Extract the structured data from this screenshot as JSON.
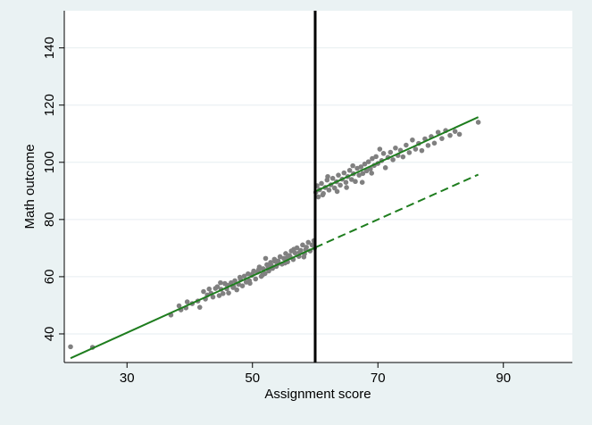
{
  "chart_data": {
    "type": "scatter",
    "title": "",
    "xlabel": "Assignment score",
    "ylabel": "Math outcome",
    "xlim": [
      20,
      101
    ],
    "ylim": [
      30,
      153
    ],
    "xticks": [
      30,
      50,
      70,
      90
    ],
    "yticks": [
      40,
      60,
      80,
      100,
      120,
      140
    ],
    "grid": true,
    "legend": "none",
    "cutoff": 60,
    "colors": {
      "points": "#808080",
      "fit_line": "#1e7d1e",
      "cutoff_line": "#000000",
      "plot_background": "#ffffff",
      "outer_background": "#eaf2f3",
      "grid": "#e6eef0"
    },
    "fit_lines": [
      {
        "x": [
          21,
          60
        ],
        "y": [
          31.5,
          70.2
        ],
        "style": "solid"
      },
      {
        "x": [
          60,
          86
        ],
        "y": [
          70.2,
          95.7
        ],
        "style": "dashed"
      },
      {
        "x": [
          60,
          86
        ],
        "y": [
          89.8,
          115.8
        ],
        "style": "solid"
      }
    ],
    "points": [
      [
        21,
        35.5
      ],
      [
        24.5,
        35.3
      ],
      [
        37,
        46.6
      ],
      [
        38.3,
        49.8
      ],
      [
        38.6,
        48.4
      ],
      [
        39.4,
        49.1
      ],
      [
        39.6,
        51.2
      ],
      [
        40.4,
        50.6
      ],
      [
        41.3,
        51.5
      ],
      [
        41.6,
        49.3
      ],
      [
        42.2,
        54.8
      ],
      [
        42.5,
        52.2
      ],
      [
        42.8,
        53.6
      ],
      [
        43.1,
        55.7
      ],
      [
        43.4,
        54.2
      ],
      [
        43.7,
        52.9
      ],
      [
        44.1,
        55.9
      ],
      [
        44.4,
        56.5
      ],
      [
        44.7,
        53.4
      ],
      [
        45.0,
        55.6
      ],
      [
        45.3,
        54.1
      ],
      [
        45.6,
        57.6
      ],
      [
        45.9,
        55.8
      ],
      [
        46.2,
        54.3
      ],
      [
        46.6,
        57.9
      ],
      [
        46.9,
        56.2
      ],
      [
        47.2,
        58.6
      ],
      [
        47.5,
        55.4
      ],
      [
        47.8,
        57.3
      ],
      [
        48.1,
        59.0
      ],
      [
        48.4,
        56.8
      ],
      [
        48.7,
        60.2
      ],
      [
        49.0,
        58.1
      ],
      [
        49.3,
        61.0
      ],
      [
        49.6,
        57.7
      ],
      [
        49.9,
        60.5
      ],
      [
        50.2,
        62.0
      ],
      [
        50.5,
        59.2
      ],
      [
        50.8,
        61.6
      ],
      [
        51.1,
        63.4
      ],
      [
        51.4,
        60.1
      ],
      [
        51.7,
        62.8
      ],
      [
        52.0,
        61.1
      ],
      [
        52.3,
        64.2
      ],
      [
        52.6,
        62.0
      ],
      [
        52.9,
        65.0
      ],
      [
        53.2,
        62.9
      ],
      [
        53.5,
        66.1
      ],
      [
        53.8,
        63.6
      ],
      [
        54.1,
        65.5
      ],
      [
        54.4,
        67.0
      ],
      [
        54.7,
        64.4
      ],
      [
        55.0,
        66.4
      ],
      [
        55.3,
        68.1
      ],
      [
        55.6,
        65.2
      ],
      [
        55.9,
        67.4
      ],
      [
        56.2,
        69.0
      ],
      [
        56.5,
        66.0
      ],
      [
        56.8,
        68.3
      ],
      [
        57.1,
        70.1
      ],
      [
        57.4,
        67.1
      ],
      [
        57.7,
        69.2
      ],
      [
        58.0,
        71.1
      ],
      [
        58.3,
        68.0
      ],
      [
        58.6,
        70.3
      ],
      [
        58.9,
        72.0
      ],
      [
        59.2,
        69.0
      ],
      [
        59.5,
        71.1
      ],
      [
        59.8,
        72.6
      ],
      [
        59.9,
        70.0
      ],
      [
        46.0,
        57.0
      ],
      [
        48.0,
        59.8
      ],
      [
        50.0,
        61.0
      ],
      [
        51.0,
        62.5
      ],
      [
        52.5,
        63.0
      ],
      [
        53.0,
        64.0
      ],
      [
        54.0,
        64.5
      ],
      [
        55.5,
        66.5
      ],
      [
        56.0,
        67.0
      ],
      [
        57.5,
        68.5
      ],
      [
        58.5,
        69.5
      ],
      [
        47.0,
        56.5
      ],
      [
        49.5,
        58.6
      ],
      [
        51.6,
        60.6
      ],
      [
        53.6,
        65.4
      ],
      [
        55.2,
        64.8
      ],
      [
        56.6,
        69.6
      ],
      [
        58.2,
        66.9
      ],
      [
        44.9,
        57.9
      ],
      [
        52.1,
        66.4
      ],
      [
        60.1,
        89.5
      ],
      [
        60.3,
        91.8
      ],
      [
        60.5,
        87.9
      ],
      [
        60.7,
        90.4
      ],
      [
        61.0,
        92.6
      ],
      [
        61.3,
        89.1
      ],
      [
        61.6,
        91.2
      ],
      [
        61.9,
        93.8
      ],
      [
        62.2,
        90.3
      ],
      [
        62.5,
        92.1
      ],
      [
        62.8,
        94.4
      ],
      [
        63.1,
        91.0
      ],
      [
        63.4,
        93.2
      ],
      [
        63.7,
        95.5
      ],
      [
        64.0,
        92.0
      ],
      [
        64.3,
        94.1
      ],
      [
        64.6,
        96.3
      ],
      [
        64.9,
        93.0
      ],
      [
        65.2,
        95.0
      ],
      [
        65.5,
        97.2
      ],
      [
        65.8,
        94.0
      ],
      [
        66.1,
        96.0
      ],
      [
        66.4,
        93.3
      ],
      [
        66.7,
        97.9
      ],
      [
        67.0,
        95.5
      ],
      [
        67.3,
        98.4
      ],
      [
        67.6,
        96.1
      ],
      [
        67.9,
        99.4
      ],
      [
        68.2,
        97.0
      ],
      [
        68.5,
        100.2
      ],
      [
        68.8,
        97.7
      ],
      [
        69.1,
        101.3
      ],
      [
        69.4,
        98.9
      ],
      [
        69.7,
        102.0
      ],
      [
        70.0,
        99.6
      ],
      [
        70.3,
        104.6
      ],
      [
        70.6,
        100.6
      ],
      [
        70.9,
        103.1
      ],
      [
        71.2,
        98.1
      ],
      [
        71.6,
        101.7
      ],
      [
        72.0,
        103.5
      ],
      [
        72.4,
        100.9
      ],
      [
        72.8,
        105.0
      ],
      [
        73.2,
        102.4
      ],
      [
        73.6,
        104.2
      ],
      [
        74.0,
        101.9
      ],
      [
        74.5,
        106.0
      ],
      [
        75.0,
        103.4
      ],
      [
        75.5,
        107.8
      ],
      [
        76.0,
        104.6
      ],
      [
        76.5,
        106.6
      ],
      [
        77.0,
        104.1
      ],
      [
        77.5,
        108.2
      ],
      [
        78.0,
        105.9
      ],
      [
        78.5,
        109.0
      ],
      [
        79.0,
        106.7
      ],
      [
        79.6,
        110.5
      ],
      [
        80.2,
        108.3
      ],
      [
        80.8,
        111.1
      ],
      [
        81.5,
        109.4
      ],
      [
        82.3,
        110.8
      ],
      [
        83.0,
        109.8
      ],
      [
        86.0,
        114.0
      ],
      [
        61.2,
        88.6
      ],
      [
        62.0,
        95.0
      ],
      [
        63.5,
        89.8
      ],
      [
        65.0,
        91.2
      ],
      [
        66.0,
        98.8
      ],
      [
        67.5,
        93.0
      ],
      [
        69.0,
        96.2
      ]
    ]
  }
}
